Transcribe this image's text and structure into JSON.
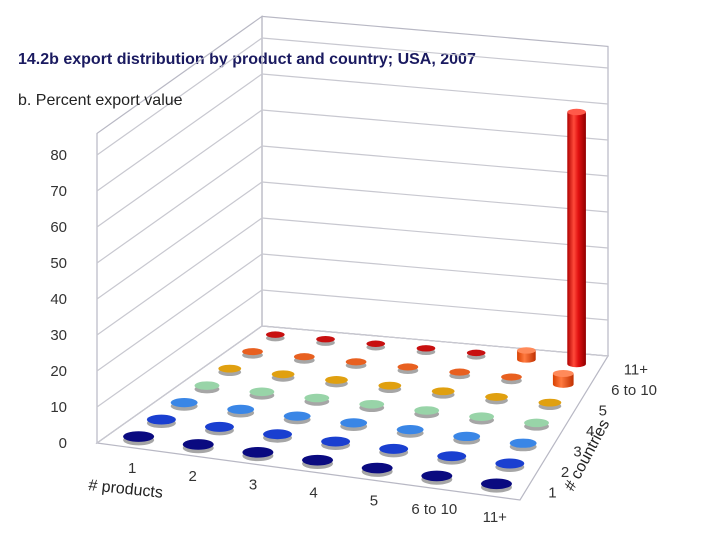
{
  "title": "14.2b export distribution by product and country; USA, 2007",
  "chart_data": {
    "type": "bar3d",
    "title": "14.2b export distribution by product and country; USA, 2007",
    "subtitle": "b. Percent export value",
    "zlabel": "b. Percent export value",
    "xlabel": "# products",
    "ylabel": "# countries",
    "x_categories": [
      "1",
      "2",
      "3",
      "4",
      "5",
      "6 to 10",
      "11+"
    ],
    "y_categories": [
      "1",
      "2",
      "3",
      "4",
      "5",
      "6 to 10",
      "11+"
    ],
    "z_ticks": [
      0,
      10,
      20,
      30,
      40,
      50,
      60,
      70,
      80
    ],
    "zlim": [
      0,
      80
    ],
    "grid": true,
    "values": [
      [
        0.1,
        0.1,
        0.1,
        0.1,
        0.1,
        0.1,
        0.2
      ],
      [
        0.1,
        0.1,
        0.1,
        0.1,
        0.1,
        0.1,
        0.2
      ],
      [
        0.1,
        0.1,
        0.1,
        0.1,
        0.1,
        0.1,
        0.2
      ],
      [
        0.1,
        0.1,
        0.1,
        0.1,
        0.1,
        0.1,
        0.2
      ],
      [
        0.1,
        0.1,
        0.1,
        0.1,
        0.1,
        0.1,
        0.3
      ],
      [
        0.1,
        0.1,
        0.1,
        0.2,
        0.3,
        0.6,
        2.5
      ],
      [
        0.1,
        0.1,
        0.2,
        0.3,
        0.5,
        3.0,
        70
      ]
    ],
    "values_layout": "values[x_index][y_index]",
    "color_by_row_of_countries": [
      "#0a0a80",
      "#1a3fd0",
      "#3a86e6",
      "#98d4a8",
      "#e0a010",
      "#e86020",
      "#c81010"
    ]
  }
}
